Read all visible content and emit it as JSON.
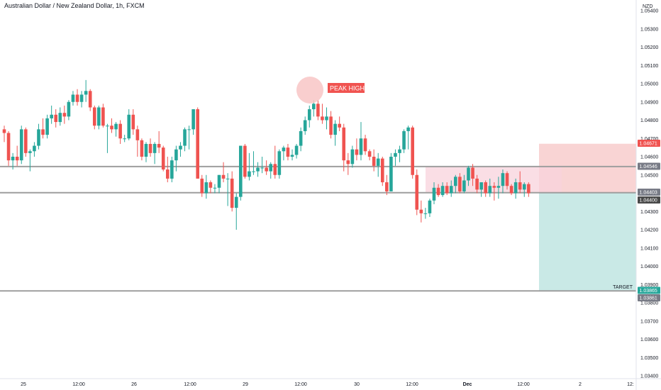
{
  "title": "Australian Dollar / New Zealand Dollar, 1h, FXCM",
  "currency": "NZD",
  "colors": {
    "bull": "#26a69a",
    "bear": "#ef5350",
    "level_line": "#9e9e9e",
    "stop_zone": "#f7c5c5",
    "profit_zone": "#b2dfdb",
    "range_box": "#f8d3dc",
    "peak_circle": "#f8c6c6",
    "tag_red": "#f05350",
    "tag_green": "#26a69a",
    "tag_gray": "#787b86",
    "tag_dark": "#4a4a4a"
  },
  "annotations": {
    "peak_label": "PEAK HIGH",
    "target_label": "TARGET"
  },
  "price_tags": [
    {
      "value": "1.04671",
      "style": "red"
    },
    {
      "value": "1.04546",
      "style": "gray"
    },
    {
      "value": "1.04403",
      "style": "gray"
    },
    {
      "value": "1.04400",
      "style": "dark"
    },
    {
      "value": "1.03865",
      "style": "green"
    },
    {
      "value": "1.03861",
      "style": "gray"
    }
  ],
  "chart_data": {
    "type": "candlestick",
    "title": "Australian Dollar / New Zealand Dollar, 1h, FXCM",
    "y_axis_label": "NZD",
    "ylim": [
      1.0335,
      1.0545
    ],
    "y_ticks": [
      "1.05400",
      "1.05300",
      "1.05200",
      "1.05100",
      "1.05000",
      "1.04900",
      "1.04800",
      "1.04700",
      "1.04600",
      "1.04500",
      "1.04400",
      "1.04300",
      "1.04200",
      "1.04100",
      "1.04000",
      "1.03900",
      "1.03800",
      "1.03700",
      "1.03600",
      "1.03500",
      "1.03400"
    ],
    "x_ticks": [
      "25",
      "12:00",
      "26",
      "12:00",
      "29",
      "12:00",
      "30",
      "12:00",
      "Dec",
      "12:00",
      "2",
      "12:"
    ],
    "horizontal_levels": [
      1.04546,
      1.04403,
      1.03865
    ],
    "position": {
      "entry": 1.04403,
      "stop": 1.04671,
      "target": 1.03865
    },
    "candles": [
      {
        "o": 1.0475,
        "h": 1.0477,
        "l": 1.0468,
        "c": 1.0473
      },
      {
        "o": 1.0473,
        "h": 1.0474,
        "l": 1.0455,
        "c": 1.0458
      },
      {
        "o": 1.0458,
        "h": 1.0462,
        "l": 1.0453,
        "c": 1.046
      },
      {
        "o": 1.046,
        "h": 1.0466,
        "l": 1.0455,
        "c": 1.0458
      },
      {
        "o": 1.0458,
        "h": 1.0477,
        "l": 1.0456,
        "c": 1.0475
      },
      {
        "o": 1.0475,
        "h": 1.0476,
        "l": 1.046,
        "c": 1.0462
      },
      {
        "o": 1.0462,
        "h": 1.0464,
        "l": 1.0452,
        "c": 1.0463
      },
      {
        "o": 1.0463,
        "h": 1.0468,
        "l": 1.046,
        "c": 1.0466
      },
      {
        "o": 1.0466,
        "h": 1.0478,
        "l": 1.0464,
        "c": 1.0475
      },
      {
        "o": 1.0475,
        "h": 1.0481,
        "l": 1.047,
        "c": 1.0472
      },
      {
        "o": 1.0472,
        "h": 1.0483,
        "l": 1.047,
        "c": 1.0481
      },
      {
        "o": 1.0481,
        "h": 1.0488,
        "l": 1.0478,
        "c": 1.0483
      },
      {
        "o": 1.0483,
        "h": 1.0486,
        "l": 1.0476,
        "c": 1.0479
      },
      {
        "o": 1.0479,
        "h": 1.0487,
        "l": 1.0477,
        "c": 1.0484
      },
      {
        "o": 1.0484,
        "h": 1.0488,
        "l": 1.0478,
        "c": 1.0482
      },
      {
        "o": 1.0482,
        "h": 1.0491,
        "l": 1.048,
        "c": 1.049
      },
      {
        "o": 1.049,
        "h": 1.0496,
        "l": 1.0488,
        "c": 1.0494
      },
      {
        "o": 1.0494,
        "h": 1.0497,
        "l": 1.0488,
        "c": 1.049
      },
      {
        "o": 1.049,
        "h": 1.0496,
        "l": 1.0487,
        "c": 1.0494
      },
      {
        "o": 1.0494,
        "h": 1.0502,
        "l": 1.049,
        "c": 1.0496
      },
      {
        "o": 1.0496,
        "h": 1.0497,
        "l": 1.0485,
        "c": 1.0487
      },
      {
        "o": 1.0487,
        "h": 1.0488,
        "l": 1.0475,
        "c": 1.0477
      },
      {
        "o": 1.0477,
        "h": 1.0488,
        "l": 1.0475,
        "c": 1.0487
      },
      {
        "o": 1.0487,
        "h": 1.0489,
        "l": 1.0476,
        "c": 1.0477
      },
      {
        "o": 1.0477,
        "h": 1.0478,
        "l": 1.0462,
        "c": 1.0477
      },
      {
        "o": 1.0477,
        "h": 1.0481,
        "l": 1.0473,
        "c": 1.0475
      },
      {
        "o": 1.0475,
        "h": 1.0479,
        "l": 1.0471,
        "c": 1.0478
      },
      {
        "o": 1.0478,
        "h": 1.048,
        "l": 1.0467,
        "c": 1.047
      },
      {
        "o": 1.047,
        "h": 1.0472,
        "l": 1.0468,
        "c": 1.047
      },
      {
        "o": 1.047,
        "h": 1.0486,
        "l": 1.0469,
        "c": 1.0483
      },
      {
        "o": 1.0483,
        "h": 1.0486,
        "l": 1.0472,
        "c": 1.0475
      },
      {
        "o": 1.0475,
        "h": 1.0477,
        "l": 1.046,
        "c": 1.0469
      },
      {
        "o": 1.0469,
        "h": 1.047,
        "l": 1.0458,
        "c": 1.046
      },
      {
        "o": 1.046,
        "h": 1.0468,
        "l": 1.0457,
        "c": 1.0467
      },
      {
        "o": 1.0467,
        "h": 1.047,
        "l": 1.046,
        "c": 1.0462
      },
      {
        "o": 1.0462,
        "h": 1.0468,
        "l": 1.0456,
        "c": 1.0467
      },
      {
        "o": 1.0467,
        "h": 1.0474,
        "l": 1.0462,
        "c": 1.0465
      },
      {
        "o": 1.0465,
        "h": 1.0466,
        "l": 1.0452,
        "c": 1.0453
      },
      {
        "o": 1.0453,
        "h": 1.046,
        "l": 1.0446,
        "c": 1.0448
      },
      {
        "o": 1.0448,
        "h": 1.046,
        "l": 1.0446,
        "c": 1.0458
      },
      {
        "o": 1.0458,
        "h": 1.0466,
        "l": 1.0452,
        "c": 1.0464
      },
      {
        "o": 1.0464,
        "h": 1.0468,
        "l": 1.046,
        "c": 1.0466
      },
      {
        "o": 1.0466,
        "h": 1.0476,
        "l": 1.0463,
        "c": 1.0475
      },
      {
        "o": 1.0475,
        "h": 1.0477,
        "l": 1.0464,
        "c": 1.0475
      },
      {
        "o": 1.0475,
        "h": 1.0486,
        "l": 1.0472,
        "c": 1.0486
      },
      {
        "o": 1.0486,
        "h": 1.0487,
        "l": 1.0448,
        "c": 1.0448
      },
      {
        "o": 1.0448,
        "h": 1.045,
        "l": 1.0438,
        "c": 1.044
      },
      {
        "o": 1.044,
        "h": 1.045,
        "l": 1.0437,
        "c": 1.0446
      },
      {
        "o": 1.0446,
        "h": 1.0447,
        "l": 1.044,
        "c": 1.0443
      },
      {
        "o": 1.0443,
        "h": 1.0445,
        "l": 1.044,
        "c": 1.0443
      },
      {
        "o": 1.0443,
        "h": 1.045,
        "l": 1.044,
        "c": 1.045
      },
      {
        "o": 1.045,
        "h": 1.0457,
        "l": 1.0446,
        "c": 1.0448
      },
      {
        "o": 1.0448,
        "h": 1.0451,
        "l": 1.0433,
        "c": 1.0448
      },
      {
        "o": 1.0448,
        "h": 1.0452,
        "l": 1.043,
        "c": 1.0432
      },
      {
        "o": 1.0432,
        "h": 1.044,
        "l": 1.042,
        "c": 1.0438
      },
      {
        "o": 1.0438,
        "h": 1.0466,
        "l": 1.0436,
        "c": 1.0466
      },
      {
        "o": 1.0466,
        "h": 1.0467,
        "l": 1.0448,
        "c": 1.0449
      },
      {
        "o": 1.0449,
        "h": 1.0462,
        "l": 1.0447,
        "c": 1.0452
      },
      {
        "o": 1.0452,
        "h": 1.0463,
        "l": 1.045,
        "c": 1.0452
      },
      {
        "o": 1.0452,
        "h": 1.0457,
        "l": 1.0449,
        "c": 1.0454
      },
      {
        "o": 1.0454,
        "h": 1.046,
        "l": 1.0451,
        "c": 1.0454
      },
      {
        "o": 1.0454,
        "h": 1.0458,
        "l": 1.045,
        "c": 1.0452
      },
      {
        "o": 1.0452,
        "h": 1.0457,
        "l": 1.0448,
        "c": 1.0456
      },
      {
        "o": 1.0456,
        "h": 1.0466,
        "l": 1.0448,
        "c": 1.045
      },
      {
        "o": 1.045,
        "h": 1.0464,
        "l": 1.0448,
        "c": 1.0463
      },
      {
        "o": 1.0463,
        "h": 1.0466,
        "l": 1.0458,
        "c": 1.0465
      },
      {
        "o": 1.0465,
        "h": 1.0467,
        "l": 1.0458,
        "c": 1.046
      },
      {
        "o": 1.046,
        "h": 1.0464,
        "l": 1.0458,
        "c": 1.0461
      },
      {
        "o": 1.0461,
        "h": 1.0467,
        "l": 1.0459,
        "c": 1.0466
      },
      {
        "o": 1.0466,
        "h": 1.0476,
        "l": 1.0463,
        "c": 1.0474
      },
      {
        "o": 1.0474,
        "h": 1.0482,
        "l": 1.0472,
        "c": 1.048
      },
      {
        "o": 1.048,
        "h": 1.0488,
        "l": 1.0476,
        "c": 1.0486
      },
      {
        "o": 1.0486,
        "h": 1.0491,
        "l": 1.0482,
        "c": 1.0489
      },
      {
        "o": 1.0489,
        "h": 1.0491,
        "l": 1.048,
        "c": 1.0482
      },
      {
        "o": 1.0482,
        "h": 1.0489,
        "l": 1.0478,
        "c": 1.048
      },
      {
        "o": 1.048,
        "h": 1.0487,
        "l": 1.0475,
        "c": 1.0482
      },
      {
        "o": 1.0482,
        "h": 1.0485,
        "l": 1.047,
        "c": 1.0472
      },
      {
        "o": 1.0472,
        "h": 1.048,
        "l": 1.0466,
        "c": 1.0478
      },
      {
        "o": 1.0478,
        "h": 1.0482,
        "l": 1.0474,
        "c": 1.0476
      },
      {
        "o": 1.0476,
        "h": 1.0478,
        "l": 1.0452,
        "c": 1.0458
      },
      {
        "o": 1.0458,
        "h": 1.0462,
        "l": 1.045,
        "c": 1.0456
      },
      {
        "o": 1.0456,
        "h": 1.0466,
        "l": 1.0454,
        "c": 1.0464
      },
      {
        "o": 1.0464,
        "h": 1.047,
        "l": 1.0458,
        "c": 1.0461
      },
      {
        "o": 1.0461,
        "h": 1.0479,
        "l": 1.0458,
        "c": 1.047
      },
      {
        "o": 1.047,
        "h": 1.0472,
        "l": 1.0461,
        "c": 1.0463
      },
      {
        "o": 1.0463,
        "h": 1.0464,
        "l": 1.0458,
        "c": 1.046
      },
      {
        "o": 1.046,
        "h": 1.0464,
        "l": 1.0452,
        "c": 1.0455
      },
      {
        "o": 1.0455,
        "h": 1.0462,
        "l": 1.0449,
        "c": 1.0459
      },
      {
        "o": 1.0459,
        "h": 1.046,
        "l": 1.0444,
        "c": 1.0446
      },
      {
        "o": 1.0446,
        "h": 1.045,
        "l": 1.0439,
        "c": 1.0441
      },
      {
        "o": 1.0441,
        "h": 1.0462,
        "l": 1.0441,
        "c": 1.046
      },
      {
        "o": 1.046,
        "h": 1.0464,
        "l": 1.0455,
        "c": 1.0462
      },
      {
        "o": 1.0462,
        "h": 1.0466,
        "l": 1.0457,
        "c": 1.0464
      },
      {
        "o": 1.0464,
        "h": 1.0475,
        "l": 1.0462,
        "c": 1.0474
      },
      {
        "o": 1.0474,
        "h": 1.0477,
        "l": 1.0464,
        "c": 1.0476
      },
      {
        "o": 1.0476,
        "h": 1.0477,
        "l": 1.0448,
        "c": 1.045
      },
      {
        "o": 1.045,
        "h": 1.0453,
        "l": 1.0428,
        "c": 1.0431
      },
      {
        "o": 1.0431,
        "h": 1.0436,
        "l": 1.0424,
        "c": 1.0429
      },
      {
        "o": 1.0429,
        "h": 1.0432,
        "l": 1.0426,
        "c": 1.0429
      },
      {
        "o": 1.0429,
        "h": 1.0437,
        "l": 1.0427,
        "c": 1.0436
      },
      {
        "o": 1.0436,
        "h": 1.0446,
        "l": 1.0434,
        "c": 1.0443
      },
      {
        "o": 1.0443,
        "h": 1.0445,
        "l": 1.0438,
        "c": 1.0439
      },
      {
        "o": 1.0439,
        "h": 1.0446,
        "l": 1.0438,
        "c": 1.0444
      },
      {
        "o": 1.0444,
        "h": 1.0446,
        "l": 1.0439,
        "c": 1.044
      },
      {
        "o": 1.044,
        "h": 1.0447,
        "l": 1.0438,
        "c": 1.0444
      },
      {
        "o": 1.0444,
        "h": 1.045,
        "l": 1.044,
        "c": 1.0449
      },
      {
        "o": 1.0449,
        "h": 1.0451,
        "l": 1.044,
        "c": 1.0441
      },
      {
        "o": 1.0441,
        "h": 1.045,
        "l": 1.044,
        "c": 1.0447
      },
      {
        "o": 1.0447,
        "h": 1.0455,
        "l": 1.0444,
        "c": 1.0454
      },
      {
        "o": 1.0454,
        "h": 1.0456,
        "l": 1.0444,
        "c": 1.0448
      },
      {
        "o": 1.0448,
        "h": 1.045,
        "l": 1.044,
        "c": 1.0442
      },
      {
        "o": 1.0442,
        "h": 1.0446,
        "l": 1.0438,
        "c": 1.0446
      },
      {
        "o": 1.0446,
        "h": 1.0447,
        "l": 1.0438,
        "c": 1.044
      },
      {
        "o": 1.044,
        "h": 1.0448,
        "l": 1.0438,
        "c": 1.0444
      },
      {
        "o": 1.0444,
        "h": 1.0446,
        "l": 1.0436,
        "c": 1.0443
      },
      {
        "o": 1.0443,
        "h": 1.0449,
        "l": 1.0437,
        "c": 1.0444
      },
      {
        "o": 1.0444,
        "h": 1.0453,
        "l": 1.044,
        "c": 1.0451
      },
      {
        "o": 1.0451,
        "h": 1.0452,
        "l": 1.0442,
        "c": 1.0444
      },
      {
        "o": 1.0444,
        "h": 1.0445,
        "l": 1.0439,
        "c": 1.044
      },
      {
        "o": 1.044,
        "h": 1.0448,
        "l": 1.0437,
        "c": 1.0446
      },
      {
        "o": 1.0446,
        "h": 1.0452,
        "l": 1.044,
        "c": 1.0442
      },
      {
        "o": 1.0442,
        "h": 1.0446,
        "l": 1.0438,
        "c": 1.0445
      },
      {
        "o": 1.0445,
        "h": 1.0446,
        "l": 1.0438,
        "c": 1.044
      }
    ]
  }
}
